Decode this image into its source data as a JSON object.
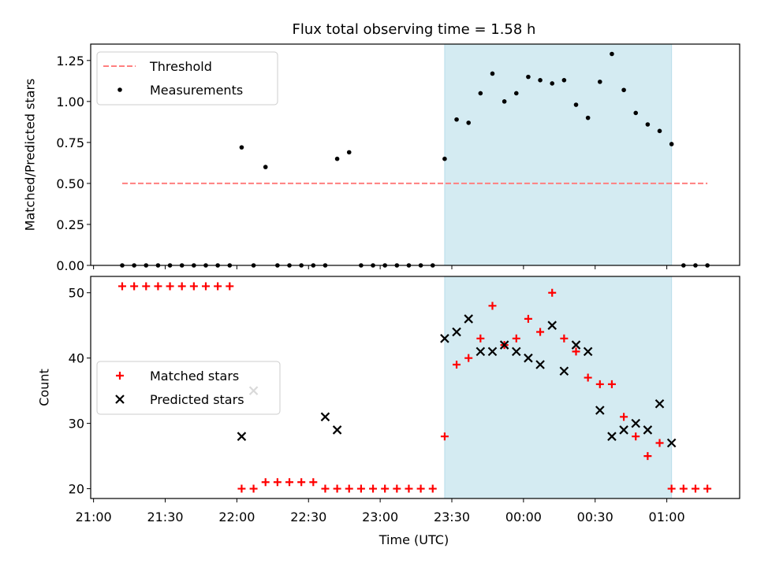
{
  "figure": {
    "title": "Flux total observing time = 1.58 h",
    "xlabel": "Time (UTC)",
    "xticks": [
      "21:00",
      "21:30",
      "22:00",
      "22:30",
      "23:00",
      "23:30",
      "00:00",
      "00:30",
      "01:00"
    ]
  },
  "chart_data": [
    {
      "type": "scatter",
      "panel": "top",
      "ylabel": "Matched/Predicted stars",
      "ylim": [
        0,
        1.35
      ],
      "yticks": [
        "0.00",
        "0.25",
        "0.50",
        "0.75",
        "1.00",
        "1.25"
      ],
      "x_unit": "minutes after 21:00 UTC",
      "shaded_region": {
        "x": [
          147,
          242
        ],
        "color": "#add8e6"
      },
      "legend": {
        "location": "upper-left",
        "entries": [
          "Threshold",
          "Measurements"
        ]
      },
      "series": [
        {
          "name": "Threshold",
          "style": "dashed-line",
          "color": "#ff7f7f",
          "x": [
            12,
            257
          ],
          "y": [
            0.5,
            0.5
          ]
        },
        {
          "name": "Measurements",
          "style": "dot",
          "color": "#000000",
          "x": [
            12,
            17,
            22,
            27,
            32,
            37,
            42,
            47,
            52,
            57,
            62,
            67,
            72,
            77,
            82,
            87,
            92,
            97,
            102,
            107,
            112,
            117,
            122,
            127,
            132,
            137,
            142,
            147,
            152,
            157,
            162,
            167,
            172,
            177,
            182,
            187,
            192,
            197,
            202,
            207,
            212,
            217,
            222,
            227,
            232,
            237,
            242,
            247,
            252,
            257
          ],
          "y": [
            0,
            0,
            0,
            0,
            0,
            0,
            0,
            0,
            0,
            0,
            0.72,
            0,
            0.6,
            0,
            0,
            0,
            0,
            0,
            0.65,
            0.69,
            0,
            0,
            0,
            0,
            0,
            0,
            0,
            0.65,
            0.89,
            0.87,
            1.05,
            1.17,
            1.0,
            1.05,
            1.15,
            1.13,
            1.11,
            1.13,
            0.98,
            0.9,
            1.12,
            1.29,
            1.07,
            0.93,
            0.86,
            0.82,
            0.74,
            0,
            0,
            0
          ]
        }
      ]
    },
    {
      "type": "scatter",
      "panel": "bottom",
      "ylabel": "Count",
      "ylim": [
        18.5,
        52.5
      ],
      "yticks": [
        "20",
        "30",
        "40",
        "50"
      ],
      "x_unit": "minutes after 21:00 UTC",
      "shaded_region": {
        "x": [
          147,
          242
        ],
        "color": "#add8e6"
      },
      "legend": {
        "location": "center-left",
        "entries": [
          "Matched stars",
          "Predicted stars"
        ]
      },
      "series": [
        {
          "name": "Matched stars",
          "marker": "plus",
          "color": "#ff0000",
          "x": [
            12,
            17,
            22,
            27,
            32,
            37,
            42,
            47,
            52,
            57,
            62,
            67,
            72,
            77,
            82,
            87,
            92,
            97,
            102,
            107,
            112,
            117,
            122,
            127,
            132,
            137,
            142,
            147,
            152,
            157,
            162,
            167,
            172,
            177,
            182,
            187,
            192,
            197,
            202,
            207,
            212,
            217,
            222,
            227,
            232,
            237,
            242,
            247,
            252,
            257
          ],
          "y": [
            51,
            51,
            51,
            51,
            51,
            51,
            51,
            51,
            51,
            51,
            20,
            20,
            21,
            21,
            21,
            21,
            21,
            20,
            20,
            20,
            20,
            20,
            20,
            20,
            20,
            20,
            20,
            28,
            39,
            40,
            43,
            48,
            42,
            43,
            46,
            44,
            50,
            43,
            41,
            37,
            36,
            36,
            31,
            28,
            25,
            27,
            20,
            20,
            20,
            20
          ]
        },
        {
          "name": "Predicted stars",
          "marker": "x",
          "color": "#000000",
          "x": [
            62,
            67,
            97,
            102,
            147,
            152,
            157,
            162,
            167,
            172,
            177,
            182,
            187,
            192,
            197,
            202,
            207,
            212,
            217,
            222,
            227,
            232,
            237,
            242
          ],
          "y": [
            28,
            35,
            31,
            29,
            43,
            44,
            46,
            41,
            41,
            42,
            41,
            40,
            39,
            45,
            38,
            42,
            41,
            32,
            28,
            29,
            30,
            29,
            33,
            27
          ]
        }
      ]
    }
  ]
}
